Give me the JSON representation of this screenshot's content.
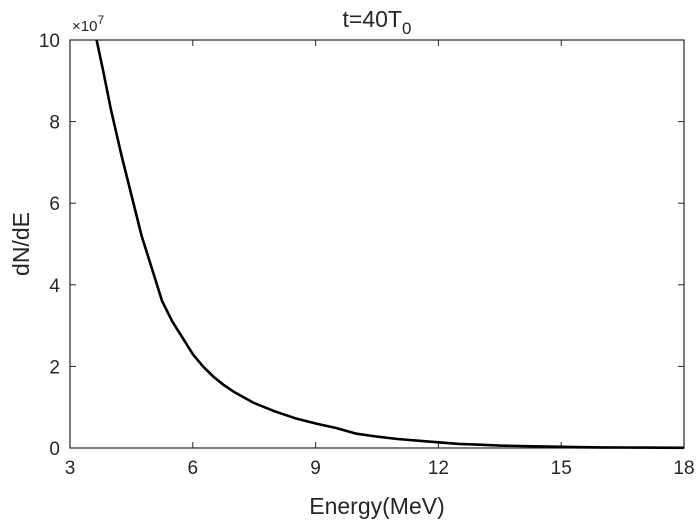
{
  "chart_data": {
    "type": "line",
    "title": "t=40T",
    "title_subscript": "0",
    "xlabel": "Energy(MeV)",
    "ylabel": "dN/dE",
    "xlim": [
      3,
      18
    ],
    "ylim": [
      0,
      10
    ],
    "y_scale_factor": {
      "times": "×",
      "base": "10",
      "exponent": "7"
    },
    "xticks": [
      "3",
      "6",
      "9",
      "12",
      "15",
      "18"
    ],
    "yticks": [
      "0",
      "2",
      "4",
      "6",
      "8",
      "10"
    ],
    "grid": false,
    "series": [
      {
        "color": "#000000",
        "x": [
          3.65,
          3.8,
          4.0,
          4.25,
          4.5,
          4.75,
          5.0,
          5.25,
          5.5,
          5.75,
          6.0,
          6.25,
          6.5,
          6.75,
          7.0,
          7.5,
          8.0,
          8.5,
          9.0,
          9.5,
          10.0,
          10.5,
          11.0,
          11.5,
          12.0,
          12.5,
          13.0,
          13.5,
          14.0,
          14.5,
          15.0,
          15.5,
          16.0,
          16.5,
          17.0,
          17.5,
          18.0
        ],
        "y": [
          10.0,
          9.3,
          8.3,
          7.2,
          6.2,
          5.2,
          4.4,
          3.6,
          3.1,
          2.7,
          2.3,
          2.0,
          1.75,
          1.55,
          1.38,
          1.1,
          0.9,
          0.73,
          0.6,
          0.49,
          0.35,
          0.28,
          0.22,
          0.18,
          0.14,
          0.1,
          0.08,
          0.06,
          0.05,
          0.04,
          0.03,
          0.02,
          0.015,
          0.012,
          0.01,
          0.008,
          0.006
        ]
      }
    ]
  }
}
